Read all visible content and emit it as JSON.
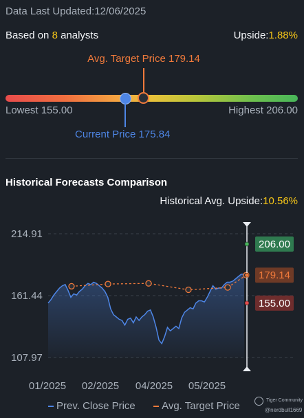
{
  "header": {
    "updated_label": "Data Last Updated:12/06/2025",
    "analysts_prefix": "Based on ",
    "analysts_count": "8",
    "analysts_suffix": " analysts",
    "upside_label": "Upside:",
    "upside_value": "1.88%"
  },
  "gauge": {
    "avg_target_label": "Avg. Target Price 179.14",
    "lowest_label": "Lowest 155.00",
    "highest_label": "Highest 206.00",
    "current_label": "Current Price 175.84",
    "low": 155.0,
    "high": 206.0,
    "avg_target": 179.14,
    "current": 175.84,
    "colors": {
      "current": "#4e86e6",
      "target": "#f07a3b"
    }
  },
  "historical": {
    "title": "Historical Forecasts Comparison",
    "avg_upside_label": "Historical Avg. Upside:",
    "avg_upside_value": "10.56%"
  },
  "legend": {
    "prev_close": "Prev. Close Price",
    "avg_target": "Avg. Target Price"
  },
  "watermark": {
    "brand": "Tiger Community",
    "user": "@nerdbull1669"
  },
  "chart_data": {
    "type": "line",
    "x_ticks": [
      "01/2025",
      "02/2025",
      "04/2025",
      "05/2025"
    ],
    "y_ticks": [
      214.91,
      161.44,
      107.97
    ],
    "ylim": [
      107.97,
      214.91
    ],
    "grid": true,
    "colors": {
      "prev_close": "#4e86e6",
      "avg_target": "#f07a3b",
      "high_tag": "#2f7a4f",
      "target_tag": "#6e3a26",
      "low_tag": "#6e2d2d"
    },
    "series": [
      {
        "name": "Prev. Close Price",
        "values": [
          155,
          158,
          162,
          165,
          168,
          170,
          171,
          166,
          160,
          163,
          162,
          165,
          167,
          170,
          172,
          171,
          173,
          172,
          170,
          168,
          165,
          160,
          150,
          145,
          143,
          141,
          140,
          136,
          141,
          142,
          138,
          143,
          140,
          143,
          145,
          148,
          149,
          143,
          134,
          123,
          120,
          126,
          134,
          131,
          133,
          135,
          133,
          142,
          147,
          149,
          151,
          150,
          155,
          157,
          157,
          156,
          160,
          165,
          170,
          167,
          168,
          168,
          171,
          173,
          173,
          174,
          176,
          178,
          180,
          180
        ]
      },
      {
        "name": "Avg. Target Price",
        "values": [
          169.5,
          171.5,
          172,
          166.5,
          168.5,
          179.14
        ]
      }
    ],
    "tags": [
      {
        "label": "206.00",
        "value": 206.0
      },
      {
        "label": "179.14",
        "value": 179.14
      },
      {
        "label": "155.00",
        "value": 155.0
      }
    ]
  }
}
